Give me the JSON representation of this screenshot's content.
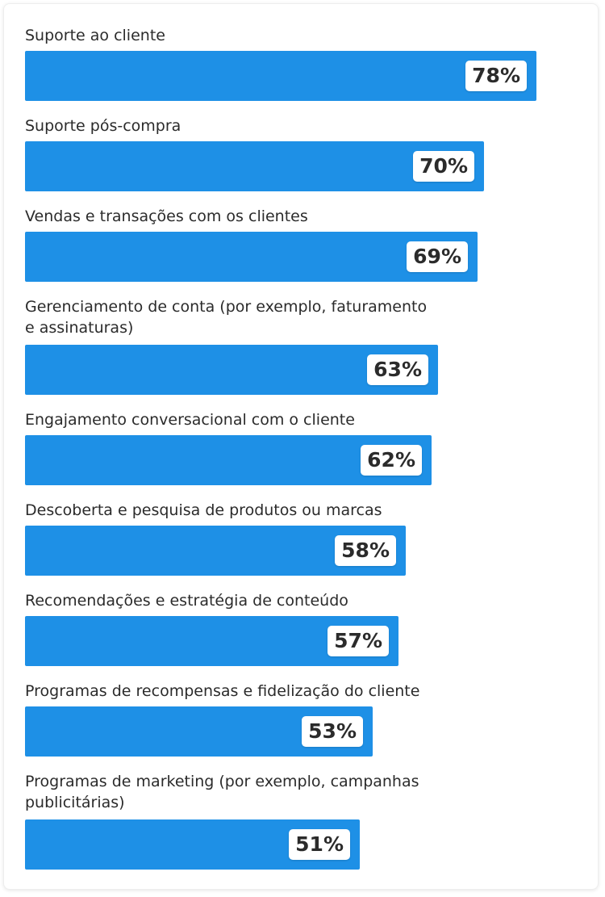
{
  "colors": {
    "bar": "#1e90e6"
  },
  "chart_data": {
    "type": "bar",
    "orientation": "horizontal",
    "categories": [
      "Suporte ao cliente",
      "Suporte pós-compra",
      "Vendas e transações com os clientes",
      "Gerenciamento de conta (por exemplo, faturamento e assinaturas)",
      "Engajamento conversacional com o cliente",
      "Descoberta e pesquisa de produtos ou marcas",
      "Recomendações e estratégia de conteúdo",
      "Programas de recompensas e fidelização do cliente",
      "Programas de marketing (por exemplo, campanhas publicitárias)"
    ],
    "values": [
      78,
      70,
      69,
      63,
      62,
      58,
      57,
      53,
      51
    ],
    "labels": [
      "78%",
      "70%",
      "69%",
      "63%",
      "62%",
      "58%",
      "57%",
      "53%",
      "51%"
    ],
    "xlim": [
      0,
      100
    ],
    "grid": false,
    "legend": "none"
  }
}
